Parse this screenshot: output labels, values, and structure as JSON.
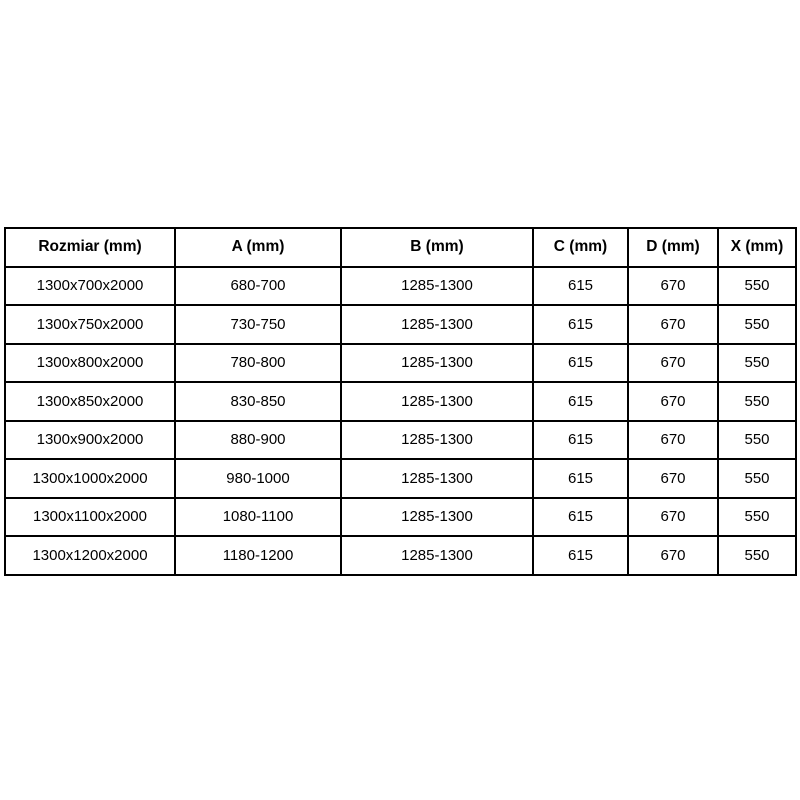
{
  "table": {
    "headers": [
      "Rozmiar (mm)",
      "A (mm)",
      "B (mm)",
      "C (mm)",
      "D (mm)",
      "X (mm)"
    ],
    "rows": [
      [
        "1300x700x2000",
        "680-700",
        "1285-1300",
        "615",
        "670",
        "550"
      ],
      [
        "1300x750x2000",
        "730-750",
        "1285-1300",
        "615",
        "670",
        "550"
      ],
      [
        "1300x800x2000",
        "780-800",
        "1285-1300",
        "615",
        "670",
        "550"
      ],
      [
        "1300x850x2000",
        "830-850",
        "1285-1300",
        "615",
        "670",
        "550"
      ],
      [
        "1300x900x2000",
        "880-900",
        "1285-1300",
        "615",
        "670",
        "550"
      ],
      [
        "1300x1000x2000",
        "980-1000",
        "1285-1300",
        "615",
        "670",
        "550"
      ],
      [
        "1300x1100x2000",
        "1080-1100",
        "1285-1300",
        "615",
        "670",
        "550"
      ],
      [
        "1300x1200x2000",
        "1180-1200",
        "1285-1300",
        "615",
        "670",
        "550"
      ]
    ]
  },
  "colors": {
    "border": "#000000",
    "text": "#000000",
    "background": "#ffffff"
  }
}
